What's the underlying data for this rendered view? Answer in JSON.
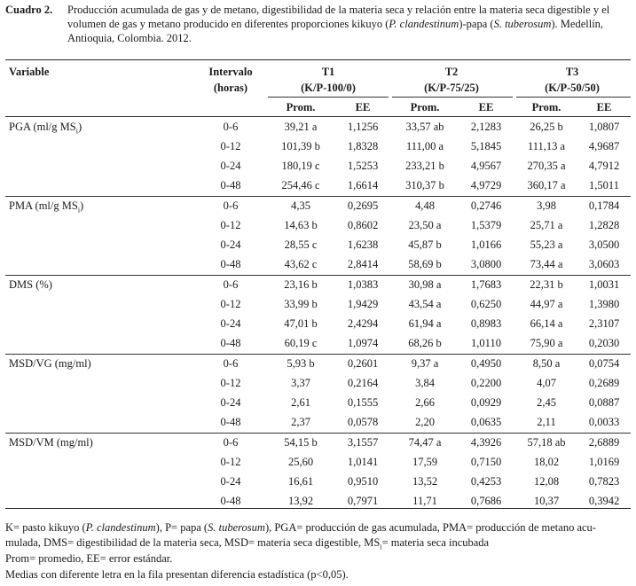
{
  "caption": {
    "label": "Cuadro 2.",
    "lines": [
      "Producción acumulada de gas y de metano, digestibilidad de la materia seca y relación entre la materia seca digestible y el",
      "volumen de gas y metano producido en diferentes proporciones kikuyo (",
      "P. clandestinum",
      ")-papa (",
      "S. tuberosum",
      "). Medellín,",
      "Antioquia, Colombia. 2012."
    ]
  },
  "header": {
    "variable": "Variable",
    "interval_line1": "Intervalo",
    "interval_line2": "(horas)",
    "groups": [
      {
        "name": "T1",
        "sub": "(K/P-100/0)"
      },
      {
        "name": "T2",
        "sub": "(K/P-75/25)"
      },
      {
        "name": "T3",
        "sub": "(K/P-50/50)"
      }
    ],
    "prom": "Prom.",
    "ee": "EE"
  },
  "sections": [
    {
      "variable": "PGA (ml/g MS",
      "subscript": "i",
      "close": ")",
      "rows": [
        {
          "interval": "0-6",
          "t1p": "39,21 a",
          "t1e": "1,1256",
          "t2p": "33,57 ab",
          "t2e": "2,1283",
          "t3p": "26,25 b",
          "t3e": "1,0807"
        },
        {
          "interval": "0-12",
          "t1p": "101,39 b",
          "t1e": "1,8328",
          "t2p": "111,00 a",
          "t2e": "5,1845",
          "t3p": "111,13 a",
          "t3e": "4,9687"
        },
        {
          "interval": "0-24",
          "t1p": "180,19 c",
          "t1e": "1,5253",
          "t2p": "233,21 b",
          "t2e": "4,9567",
          "t3p": "270,35 a",
          "t3e": "4,7912"
        },
        {
          "interval": "0-48",
          "t1p": "254,46 c",
          "t1e": "1,6614",
          "t2p": "310,37 b",
          "t2e": "4,9729",
          "t3p": "360,17 a",
          "t3e": "1,5011"
        }
      ]
    },
    {
      "variable": "PMA (ml/g MS",
      "subscript": "i",
      "close": ")",
      "rows": [
        {
          "interval": "0-6",
          "t1p": "4,35",
          "t1e": "0,2695",
          "t2p": "4,48",
          "t2e": "0,2746",
          "t3p": "3,98",
          "t3e": "0,1784"
        },
        {
          "interval": "0-12",
          "t1p": "14,63 b",
          "t1e": "0,8602",
          "t2p": "23,50 a",
          "t2e": "1,5379",
          "t3p": "25,71 a",
          "t3e": "1,2828"
        },
        {
          "interval": "0-24",
          "t1p": "28,55 c",
          "t1e": "1,6238",
          "t2p": "45,87 b",
          "t2e": "1,0166",
          "t3p": "55,23 a",
          "t3e": "3,0500"
        },
        {
          "interval": "0-48",
          "t1p": "43,62 c",
          "t1e": "2,8414",
          "t2p": "58,69 b",
          "t2e": "3,0800",
          "t3p": "73,44 a",
          "t3e": "3,0603"
        }
      ]
    },
    {
      "variable": "DMS (%)",
      "subscript": "",
      "close": "",
      "rows": [
        {
          "interval": "0-6",
          "t1p": "23,16 b",
          "t1e": "1,0383",
          "t2p": "30,98 a",
          "t2e": "1,7683",
          "t3p": "22,31 b",
          "t3e": "1,0031"
        },
        {
          "interval": "0-12",
          "t1p": "33,99 b",
          "t1e": "1,9429",
          "t2p": "43,54 a",
          "t2e": "0,6250",
          "t3p": "44,97 a",
          "t3e": "1,3980"
        },
        {
          "interval": "0-24",
          "t1p": "47,01 b",
          "t1e": "2,4294",
          "t2p": "61,94 a",
          "t2e": "0,8983",
          "t3p": "66,14 a",
          "t3e": "2,3107"
        },
        {
          "interval": "0-48",
          "t1p": "60,19 c",
          "t1e": "1,0974",
          "t2p": "68,26 b",
          "t2e": "1,0110",
          "t3p": "75,90 a",
          "t3e": "0,2030"
        }
      ]
    },
    {
      "variable": "MSD/VG (mg/ml)",
      "subscript": "",
      "close": "",
      "rows": [
        {
          "interval": "0-6",
          "t1p": "5,93 b",
          "t1e": "0,2601",
          "t2p": "9,37 a",
          "t2e": "0,4950",
          "t3p": "8,50 a",
          "t3e": "0,0754"
        },
        {
          "interval": "0-12",
          "t1p": "3,37",
          "t1e": "0,2164",
          "t2p": "3,84",
          "t2e": "0,2200",
          "t3p": "4,07",
          "t3e": "0,2689"
        },
        {
          "interval": "0-24",
          "t1p": "2,61",
          "t1e": "0,1555",
          "t2p": "2,66",
          "t2e": "0,0929",
          "t3p": "2,45",
          "t3e": "0,0887"
        },
        {
          "interval": "0-48",
          "t1p": "2,37",
          "t1e": "0,0578",
          "t2p": "2,20",
          "t2e": "0,0635",
          "t3p": "2,11",
          "t3e": "0,0033"
        }
      ]
    },
    {
      "variable": "MSD/VM (mg/ml)",
      "subscript": "",
      "close": "",
      "rows": [
        {
          "interval": "0-6",
          "t1p": "54,15 b",
          "t1e": "3,1557",
          "t2p": "74,47 a",
          "t2e": "4,3926",
          "t3p": "57,18 ab",
          "t3e": "2,6889"
        },
        {
          "interval": "0-12",
          "t1p": "25,60",
          "t1e": "1,0141",
          "t2p": "17,59",
          "t2e": "0,7150",
          "t3p": "18,02",
          "t3e": "1,0169"
        },
        {
          "interval": "0-24",
          "t1p": "16,61",
          "t1e": "0,9510",
          "t2p": "13,52",
          "t2e": "0,4253",
          "t3p": "12,08",
          "t3e": "0,7823"
        },
        {
          "interval": "0-48",
          "t1p": "13,92",
          "t1e": "0,7971",
          "t2p": "11,71",
          "t2e": "0,7686",
          "t3p": "10,37",
          "t3e": "0,3942"
        }
      ]
    }
  ],
  "notes": {
    "line1": [
      "K= pasto kikuyo (",
      "P. clandestinum",
      "), P= papa (",
      "S. tuberosum",
      "), PGA= producción de gas acumulada, PMA= producción de metano acu-"
    ],
    "line2": [
      "mulada, DMS= digestibilidad de la materia seca, MSD= materia seca digestible, MS",
      "i",
      "= materia seca incubada"
    ],
    "line3": "Prom= promedio, EE= error estándar.",
    "line4": "Medias con diferente letra en la fila presentan diferencia estadística (p<0,05)."
  }
}
